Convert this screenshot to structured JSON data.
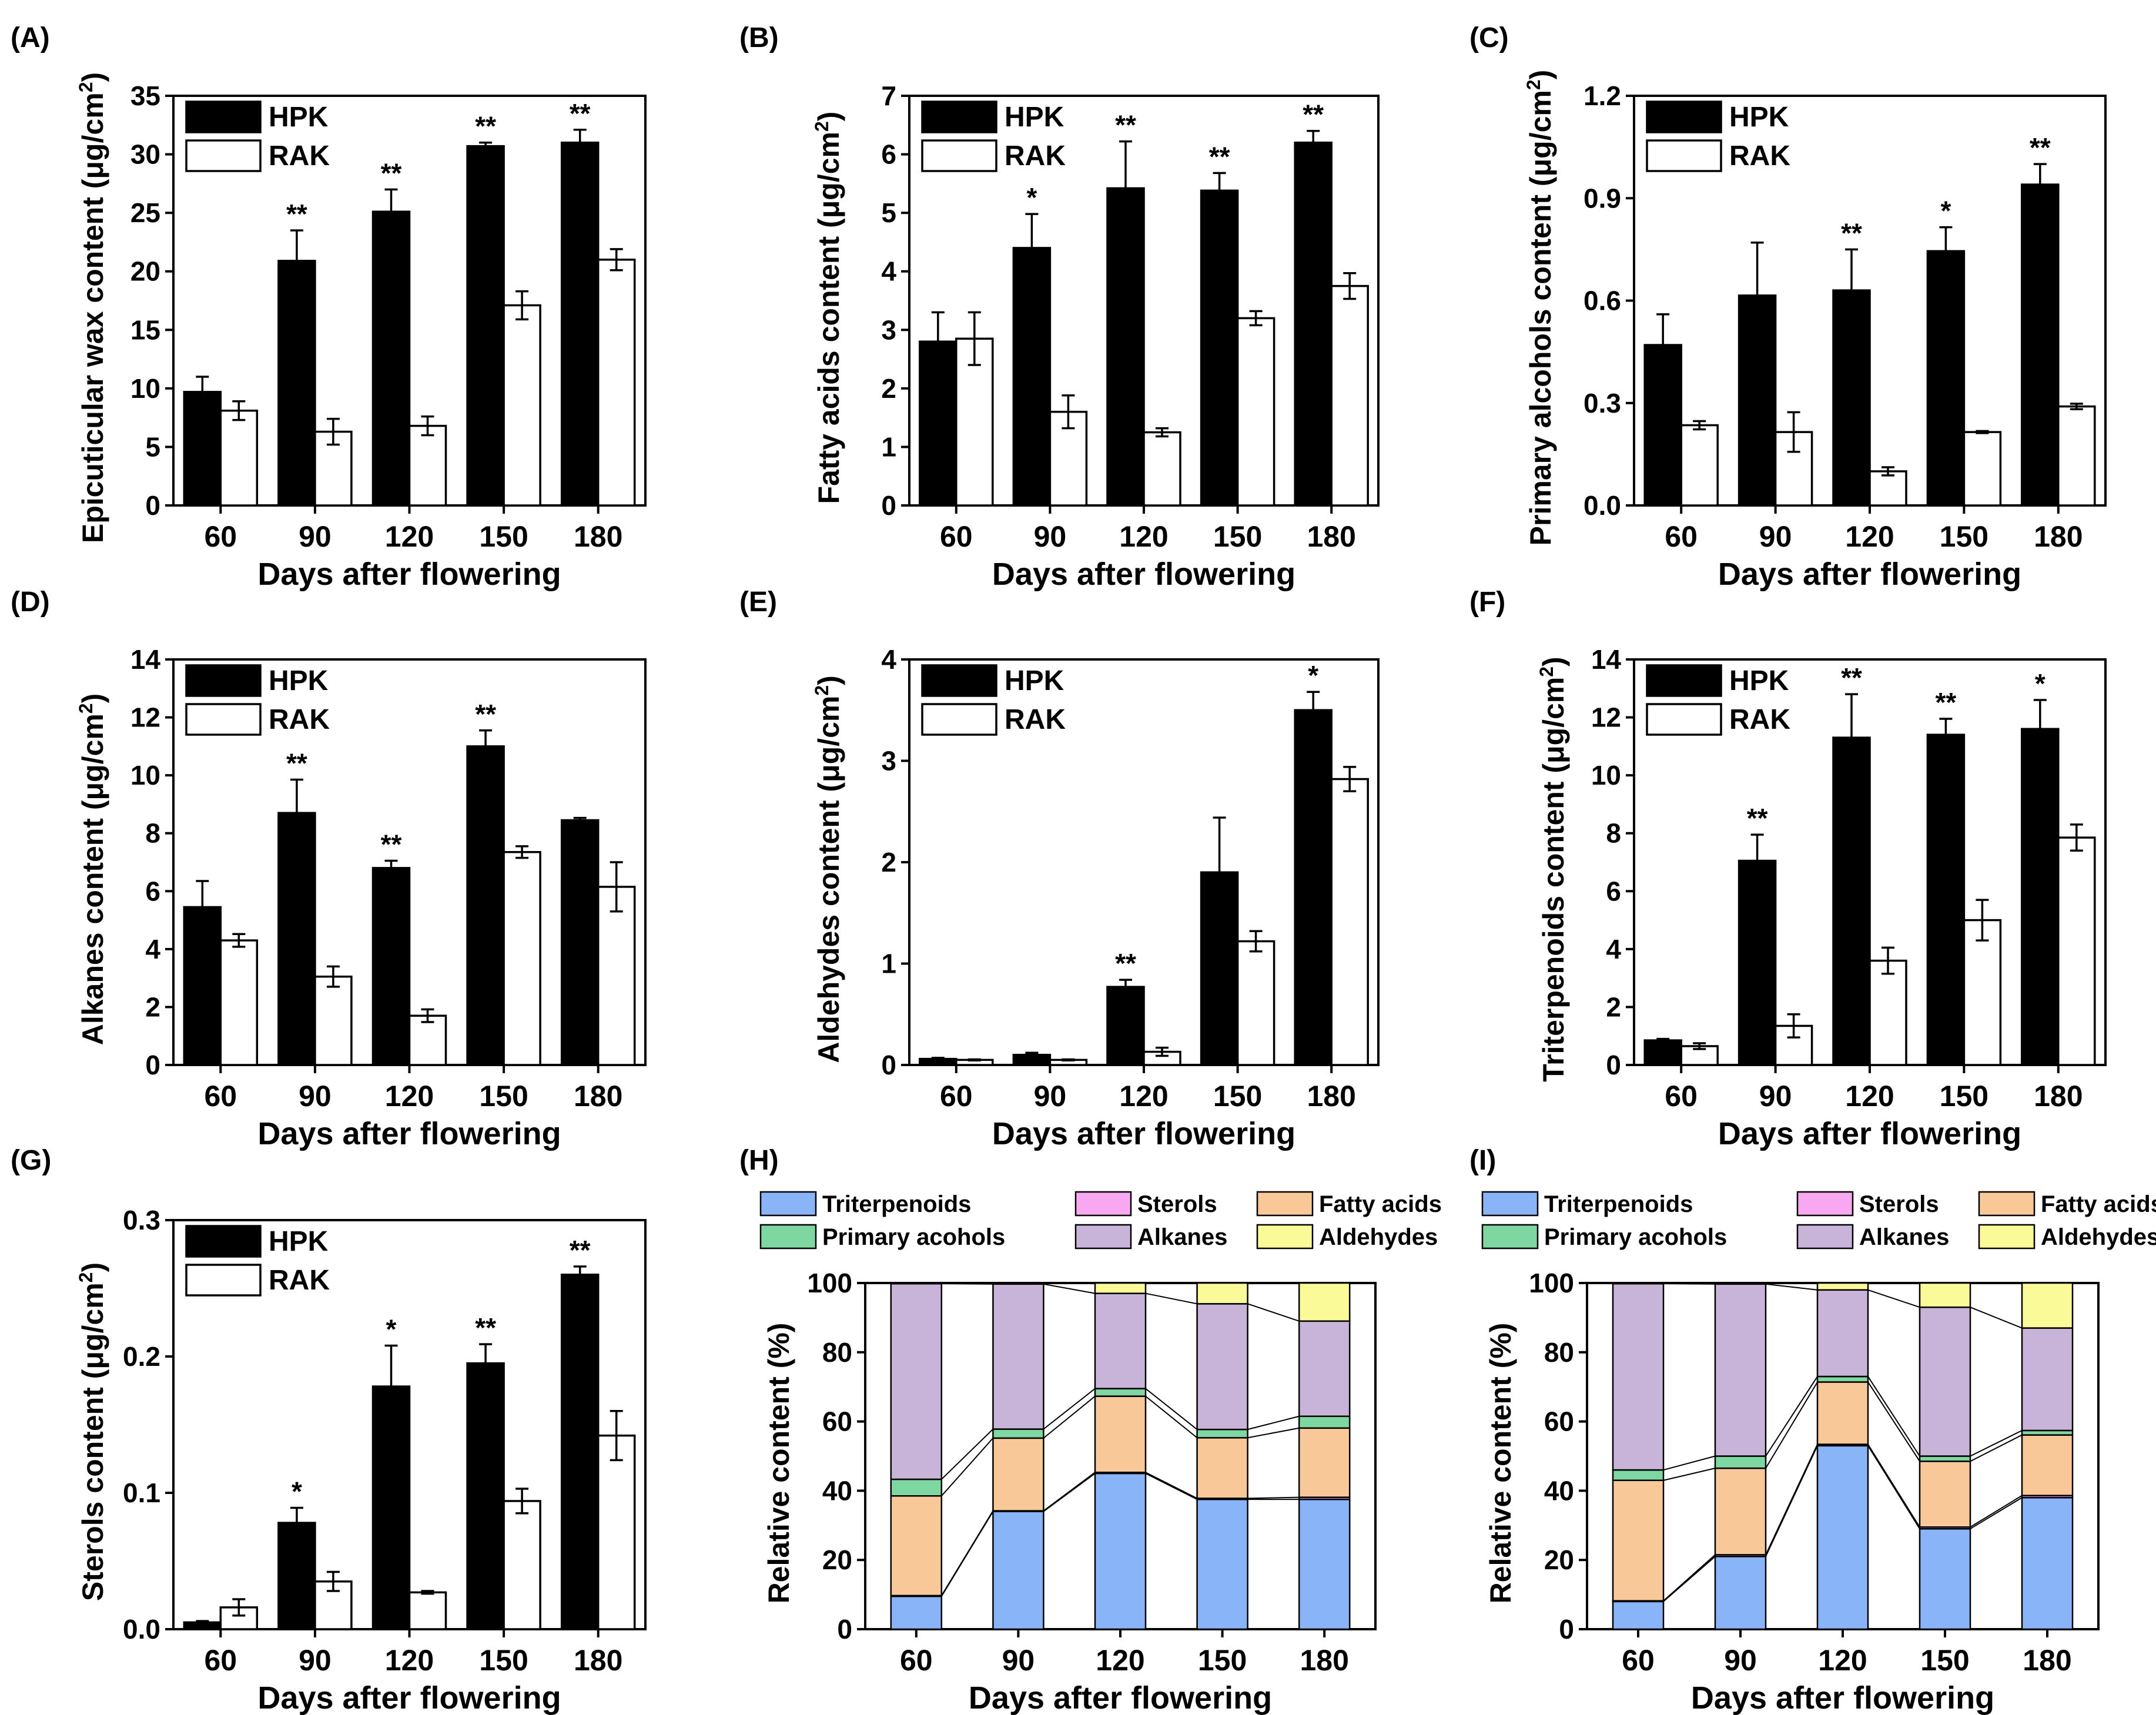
{
  "figure": {
    "categories": [
      "60",
      "90",
      "120",
      "150",
      "180"
    ],
    "colors": {
      "hpk": "#000000",
      "rak": "#ffffff",
      "axis": "#000000"
    },
    "stack_colors": {
      "Triterpenoids": "#8ab4f8",
      "Sterols": "#f8a8f0",
      "Fatty acids": "#f8c898",
      "Primary acohols": "#7ed6a0",
      "Alkanes": "#c8b4d8",
      "Aldehydes": "#fafa98"
    }
  },
  "chart_data": [
    {
      "panel": "(A)",
      "type": "bar",
      "xlabel": "Days after flowering",
      "ylabel": "Epicuticular wax content (μg/cm²)",
      "ylim": [
        0,
        35
      ],
      "yticks": [
        "0",
        "5",
        "10",
        "15",
        "20",
        "25",
        "30",
        "35"
      ],
      "legend": [
        "HPK",
        "RAK"
      ],
      "series": [
        {
          "name": "HPK",
          "values": [
            9.7,
            20.9,
            25.1,
            30.7,
            31.0
          ],
          "errors": [
            1.3,
            2.6,
            1.9,
            0.3,
            1.1
          ]
        },
        {
          "name": "RAK",
          "values": [
            8.1,
            6.3,
            6.8,
            17.1,
            21.0
          ],
          "errors": [
            0.8,
            1.1,
            0.8,
            1.2,
            0.9
          ]
        }
      ],
      "significance": [
        "",
        "**",
        "**",
        "**",
        "**"
      ]
    },
    {
      "panel": "(B)",
      "type": "bar",
      "xlabel": "Days after flowering",
      "ylabel": "Fatty acids content (μg/cm²)",
      "ylim": [
        0,
        7
      ],
      "yticks": [
        "0",
        "1",
        "2",
        "3",
        "4",
        "5",
        "6",
        "7"
      ],
      "legend": [
        "HPK",
        "RAK"
      ],
      "series": [
        {
          "name": "HPK",
          "values": [
            2.8,
            4.4,
            5.42,
            5.38,
            6.2
          ],
          "errors": [
            0.5,
            0.58,
            0.8,
            0.3,
            0.2
          ]
        },
        {
          "name": "RAK",
          "values": [
            2.85,
            1.6,
            1.25,
            3.2,
            3.75
          ],
          "errors": [
            0.45,
            0.28,
            0.07,
            0.12,
            0.22
          ]
        }
      ],
      "significance": [
        "",
        "*",
        "**",
        "**",
        "**"
      ]
    },
    {
      "panel": "(C)",
      "type": "bar",
      "xlabel": "Days after flowering",
      "ylabel": "Primary alcohols content (μg/cm²)",
      "ylim": [
        0,
        1.2
      ],
      "yticks": [
        "0.0",
        "0.3",
        "0.6",
        "0.9",
        "1.2"
      ],
      "legend": [
        "HPK",
        "RAK"
      ],
      "series": [
        {
          "name": "HPK",
          "values": [
            0.47,
            0.615,
            0.63,
            0.745,
            0.94
          ],
          "errors": [
            0.09,
            0.155,
            0.12,
            0.07,
            0.06
          ]
        },
        {
          "name": "RAK",
          "values": [
            0.235,
            0.215,
            0.1,
            0.215,
            0.29
          ],
          "errors": [
            0.012,
            0.058,
            0.012,
            0.003,
            0.008
          ]
        }
      ],
      "significance": [
        "",
        "",
        "**",
        "*",
        "**"
      ]
    },
    {
      "panel": "(D)",
      "type": "bar",
      "xlabel": "Days after flowering",
      "ylabel": "Alkanes content (μg/cm²)",
      "ylim": [
        0,
        14
      ],
      "yticks": [
        "0",
        "2",
        "4",
        "6",
        "8",
        "10",
        "12",
        "14"
      ],
      "legend": [
        "HPK",
        "RAK"
      ],
      "series": [
        {
          "name": "HPK",
          "values": [
            5.45,
            8.7,
            6.8,
            11.0,
            8.45
          ],
          "errors": [
            0.9,
            1.15,
            0.25,
            0.55,
            0.08
          ]
        },
        {
          "name": "RAK",
          "values": [
            4.3,
            3.05,
            1.7,
            7.35,
            6.15
          ],
          "errors": [
            0.22,
            0.35,
            0.22,
            0.2,
            0.85
          ]
        }
      ],
      "significance": [
        "",
        "**",
        "**",
        "**",
        ""
      ]
    },
    {
      "panel": "(E)",
      "type": "bar",
      "xlabel": "Days after flowering",
      "ylabel": "Aldehydes content (μg/cm²)",
      "ylim": [
        0,
        4
      ],
      "yticks": [
        "0",
        "1",
        "2",
        "3",
        "4"
      ],
      "legend": [
        "HPK",
        "RAK"
      ],
      "series": [
        {
          "name": "HPK",
          "values": [
            0.06,
            0.1,
            0.77,
            1.9,
            3.5
          ],
          "errors": [
            0.01,
            0.02,
            0.07,
            0.54,
            0.18
          ]
        },
        {
          "name": "RAK",
          "values": [
            0.05,
            0.05,
            0.13,
            1.22,
            2.82
          ],
          "errors": [
            0.005,
            0.005,
            0.04,
            0.1,
            0.12
          ]
        }
      ],
      "significance": [
        "",
        "",
        "**",
        "",
        "*"
      ]
    },
    {
      "panel": "(F)",
      "type": "bar",
      "xlabel": "Days after flowering",
      "ylabel": "Triterpenoids content (μg/cm²)",
      "ylim": [
        0,
        14
      ],
      "yticks": [
        "0",
        "2",
        "4",
        "6",
        "8",
        "10",
        "12",
        "14"
      ],
      "legend": [
        "HPK",
        "RAK"
      ],
      "series": [
        {
          "name": "HPK",
          "values": [
            0.85,
            7.05,
            11.3,
            11.4,
            11.6
          ],
          "errors": [
            0.05,
            0.9,
            1.5,
            0.55,
            1.0
          ]
        },
        {
          "name": "RAK",
          "values": [
            0.65,
            1.35,
            3.6,
            5.0,
            7.85
          ],
          "errors": [
            0.1,
            0.4,
            0.45,
            0.7,
            0.45
          ]
        }
      ],
      "significance": [
        "",
        "**",
        "**",
        "**",
        "*"
      ]
    },
    {
      "panel": "(G)",
      "type": "bar",
      "xlabel": "Days after flowering",
      "ylabel": "Sterols content (μg/cm²)",
      "ylim": [
        0,
        0.3
      ],
      "yticks": [
        "0.0",
        "0.1",
        "0.2",
        "0.3"
      ],
      "legend": [
        "HPK",
        "RAK"
      ],
      "series": [
        {
          "name": "HPK",
          "values": [
            0.005,
            0.078,
            0.178,
            0.195,
            0.26
          ],
          "errors": [
            0.001,
            0.011,
            0.03,
            0.014,
            0.006
          ]
        },
        {
          "name": "RAK",
          "values": [
            0.016,
            0.035,
            0.027,
            0.094,
            0.142
          ],
          "errors": [
            0.006,
            0.007,
            0.001,
            0.009,
            0.018
          ]
        }
      ],
      "significance": [
        "",
        "*",
        "*",
        "**",
        "**"
      ]
    },
    {
      "panel": "(H)",
      "type": "bar",
      "stacked": true,
      "xlabel": "Days after flowering",
      "ylabel": "Relative content (%)",
      "ylim": [
        0,
        100
      ],
      "yticks": [
        "0",
        "20",
        "40",
        "60",
        "80",
        "100"
      ],
      "legend": [
        "Triterpenoids",
        "Sterols",
        "Fatty acids",
        "Primary acohols",
        "Alkanes",
        "Aldehydes"
      ],
      "series": [
        {
          "name": "Triterpenoids",
          "values": [
            9.5,
            34,
            45,
            37.5,
            37.5
          ]
        },
        {
          "name": "Sterols",
          "values": [
            0.2,
            0.2,
            0.3,
            0.3,
            0.6
          ]
        },
        {
          "name": "Fatty acids",
          "values": [
            28.8,
            21,
            22,
            17.5,
            20
          ]
        },
        {
          "name": "Primary acohols",
          "values": [
            4.8,
            2.6,
            2.2,
            2.4,
            3.4
          ]
        },
        {
          "name": "Alkanes",
          "values": [
            56.5,
            41.9,
            27.5,
            36.3,
            27.5
          ]
        },
        {
          "name": "Aldehydes",
          "values": [
            0.2,
            0.3,
            3,
            6,
            11
          ]
        }
      ]
    },
    {
      "panel": "(I)",
      "type": "bar",
      "stacked": true,
      "xlabel": "Days after flowering",
      "ylabel": "Relative content (%)",
      "ylim": [
        0,
        100
      ],
      "yticks": [
        "0",
        "20",
        "40",
        "60",
        "80",
        "100"
      ],
      "legend": [
        "Triterpenoids",
        "Sterols",
        "Fatty acids",
        "Primary acohols",
        "Alkanes",
        "Aldehydes"
      ],
      "series": [
        {
          "name": "Triterpenoids",
          "values": [
            8,
            21,
            53,
            29,
            38
          ]
        },
        {
          "name": "Sterols",
          "values": [
            0.2,
            0.5,
            0.4,
            0.5,
            0.6
          ]
        },
        {
          "name": "Fatty acids",
          "values": [
            34.8,
            25,
            18,
            19,
            17.5
          ]
        },
        {
          "name": "Primary acohols",
          "values": [
            3,
            3.5,
            1.6,
            1.5,
            1.3
          ]
        },
        {
          "name": "Alkanes",
          "values": [
            53.8,
            49.7,
            25,
            43,
            29.6
          ]
        },
        {
          "name": "Aldehydes",
          "values": [
            0.2,
            0.3,
            2,
            7,
            13
          ]
        }
      ]
    }
  ]
}
